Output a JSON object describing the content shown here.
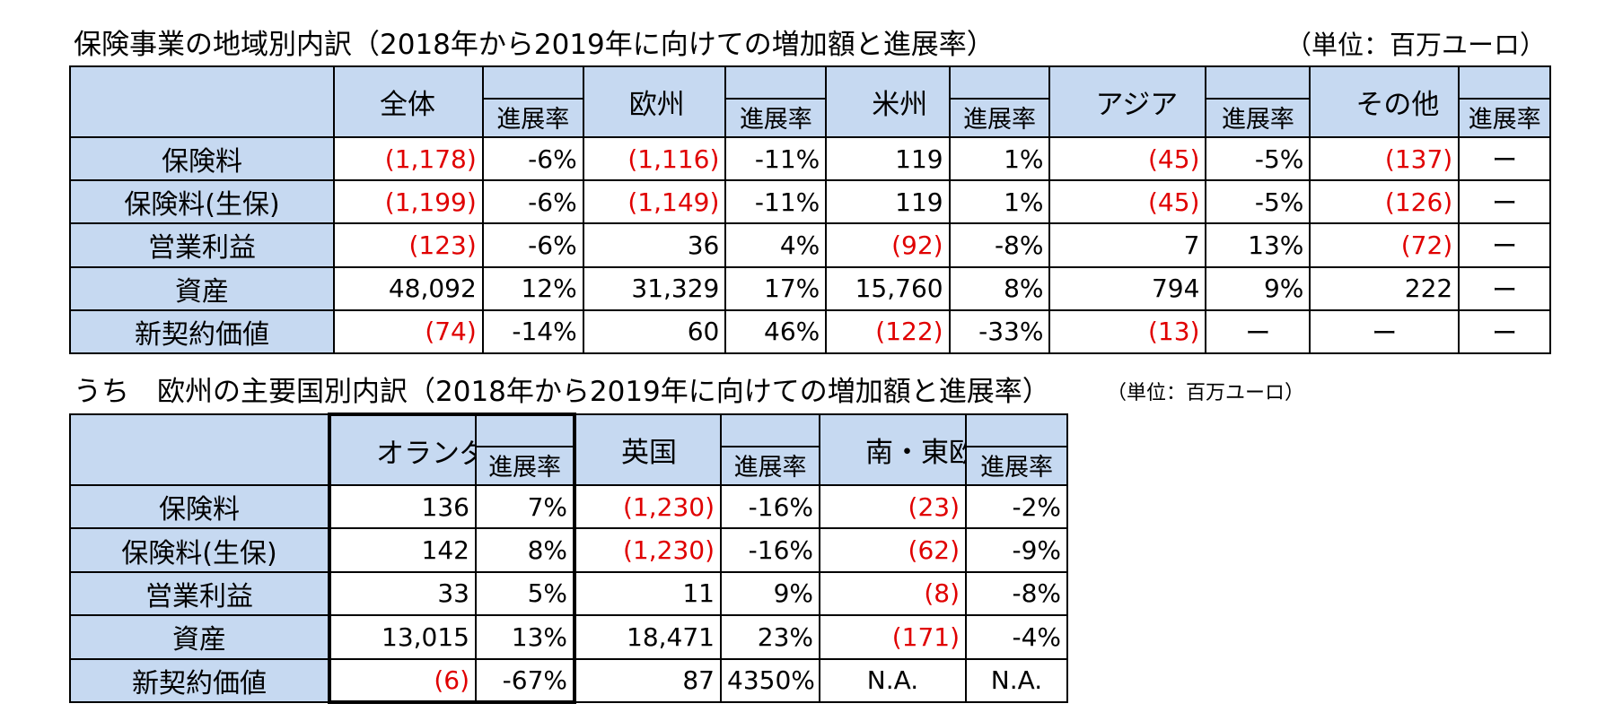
{
  "table1": {
    "title": "保険事業の地域別内訳（2018年から2019年に向けての増加額と進展率）",
    "unit": "（単位：百万ユーロ）",
    "rate_label": "進展率",
    "regions": [
      "全体",
      "欧州",
      "米州",
      "アジア",
      "その他"
    ],
    "rows": [
      {
        "label": "保険料",
        "cells": [
          {
            "v": "(1,178)",
            "neg": true
          },
          {
            "v": "-6%"
          },
          {
            "v": "(1,116)",
            "neg": true
          },
          {
            "v": "-11%"
          },
          {
            "v": "119"
          },
          {
            "v": "1%"
          },
          {
            "v": "(45)",
            "neg": true
          },
          {
            "v": "-5%"
          },
          {
            "v": "(137)",
            "neg": true
          },
          {
            "v": "ー"
          }
        ]
      },
      {
        "label": "保険料(生保)",
        "cells": [
          {
            "v": "(1,199)",
            "neg": true
          },
          {
            "v": "-6%"
          },
          {
            "v": "(1,149)",
            "neg": true
          },
          {
            "v": "-11%"
          },
          {
            "v": "119"
          },
          {
            "v": "1%"
          },
          {
            "v": "(45)",
            "neg": true
          },
          {
            "v": "-5%"
          },
          {
            "v": "(126)",
            "neg": true
          },
          {
            "v": "ー"
          }
        ]
      },
      {
        "label": "営業利益",
        "cells": [
          {
            "v": "(123)",
            "neg": true
          },
          {
            "v": "-6%"
          },
          {
            "v": "36"
          },
          {
            "v": "4%"
          },
          {
            "v": "(92)",
            "neg": true
          },
          {
            "v": "-8%"
          },
          {
            "v": "7"
          },
          {
            "v": "13%"
          },
          {
            "v": "(72)",
            "neg": true
          },
          {
            "v": "ー"
          }
        ]
      },
      {
        "label": "資産",
        "cells": [
          {
            "v": "48,092"
          },
          {
            "v": "12%"
          },
          {
            "v": "31,329"
          },
          {
            "v": "17%"
          },
          {
            "v": "15,760"
          },
          {
            "v": "8%"
          },
          {
            "v": "794"
          },
          {
            "v": "9%"
          },
          {
            "v": "222"
          },
          {
            "v": "ー"
          }
        ]
      },
      {
        "label": "新契約価値",
        "cells": [
          {
            "v": "(74)",
            "neg": true
          },
          {
            "v": "-14%"
          },
          {
            "v": "60"
          },
          {
            "v": "46%"
          },
          {
            "v": "(122)",
            "neg": true
          },
          {
            "v": "-33%"
          },
          {
            "v": "(13)",
            "neg": true
          },
          {
            "v": "ー"
          },
          {
            "v": "ー"
          },
          {
            "v": "ー"
          }
        ]
      }
    ]
  },
  "table2": {
    "title": "うち　欧州の主要国別内訳（2018年から2019年に向けての増加額と進展率）",
    "unit": "（単位：百万ユーロ）",
    "rate_label": "進展率",
    "regions": [
      "オランダ",
      "英国",
      "南・東欧"
    ],
    "rows": [
      {
        "label": "保険料",
        "cells": [
          {
            "v": "136"
          },
          {
            "v": "7%"
          },
          {
            "v": "(1,230)",
            "neg": true
          },
          {
            "v": "-16%"
          },
          {
            "v": "(23)",
            "neg": true
          },
          {
            "v": "-2%"
          }
        ]
      },
      {
        "label": "保険料(生保)",
        "cells": [
          {
            "v": "142"
          },
          {
            "v": "8%"
          },
          {
            "v": "(1,230)",
            "neg": true
          },
          {
            "v": "-16%"
          },
          {
            "v": "(62)",
            "neg": true
          },
          {
            "v": "-9%"
          }
        ]
      },
      {
        "label": "営業利益",
        "cells": [
          {
            "v": "33"
          },
          {
            "v": "5%"
          },
          {
            "v": "11"
          },
          {
            "v": "9%"
          },
          {
            "v": "(8)",
            "neg": true
          },
          {
            "v": "-8%"
          }
        ]
      },
      {
        "label": "資産",
        "cells": [
          {
            "v": "13,015"
          },
          {
            "v": "13%"
          },
          {
            "v": "18,471"
          },
          {
            "v": "23%"
          },
          {
            "v": "(171)",
            "neg": true
          },
          {
            "v": "-4%"
          }
        ]
      },
      {
        "label": "新契約価値",
        "cells": [
          {
            "v": "(6)",
            "neg": true
          },
          {
            "v": "-67%"
          },
          {
            "v": "87"
          },
          {
            "v": "4350%"
          },
          {
            "v": "N.A."
          },
          {
            "v": "N.A."
          }
        ]
      }
    ]
  },
  "colors": {
    "header_bg": "#c6d9f1",
    "negative": "#e00000",
    "border": "#000000"
  }
}
